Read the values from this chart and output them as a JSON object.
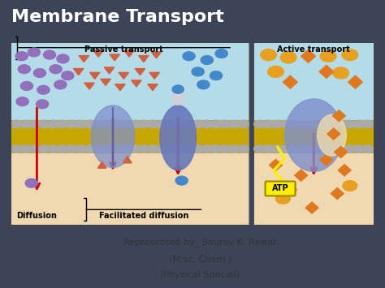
{
  "title": "Membrane Transport",
  "title_color": "#ffffff",
  "title_fontsize": 16,
  "title_fontweight": "bold",
  "background_color": "#3d4457",
  "panel_bg": "#f5f5f5",
  "credit_line1": "Represented by_ Saurav K. Rawat",
  "credit_line2": "(M.sc. Chem.)",
  "credit_line3": "(Physical Special)",
  "credit_color": "#333333",
  "credit_fontsize": 8,
  "passive_label": "Passive transport",
  "active_label": "Active transport",
  "diffusion_label": "Diffusion",
  "facilitated_label": "Facilitated diffusion",
  "atp_label": "ATP",
  "sky_blue": "#b3dce8",
  "peach": "#f0d9b0",
  "membrane_yellow": "#c8a800",
  "membrane_gray": "#aaaaaa",
  "purple_circle": "#9370bb",
  "blue_circle": "#4488cc",
  "orange_diamond": "#e07820",
  "orange_circle": "#e8a020",
  "protein_color": "#8090cc",
  "arrow_red": "#cc0000",
  "salmon_tri": "#d06040",
  "atp_yellow": "#ffee00",
  "lightning_yellow": "#ffee00"
}
